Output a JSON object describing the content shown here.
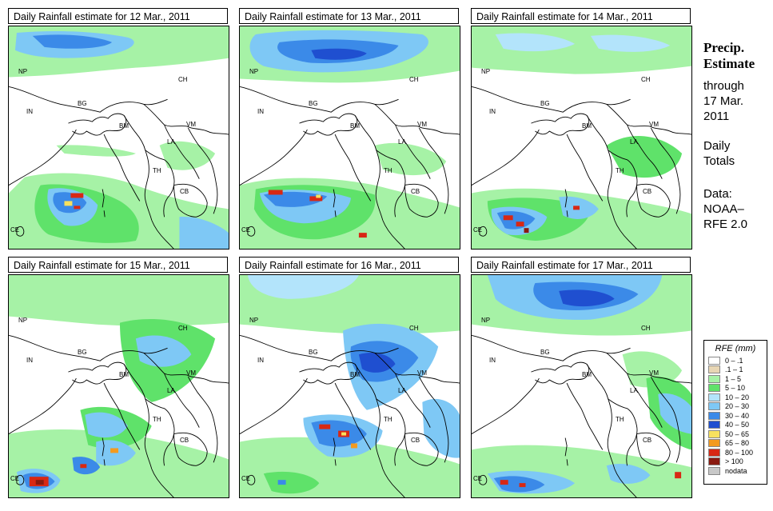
{
  "title_prefix": "Daily Rainfall estimate for",
  "panels": [
    {
      "title": "Daily Rainfall estimate for  12 Mar., 2011",
      "date": "12 Mar., 2011"
    },
    {
      "title": "Daily Rainfall estimate for  13 Mar., 2011",
      "date": "13 Mar., 2011"
    },
    {
      "title": "Daily Rainfall estimate for  14 Mar., 2011",
      "date": "14 Mar., 2011"
    },
    {
      "title": "Daily Rainfall estimate for  15 Mar., 2011",
      "date": "15 Mar., 2011"
    },
    {
      "title": "Daily Rainfall estimate for  16 Mar., 2011",
      "date": "16 Mar., 2011"
    },
    {
      "title": "Daily Rainfall estimate for  17 Mar., 2011",
      "date": "17 Mar., 2011"
    }
  ],
  "country_labels": {
    "NP": "NP",
    "CH": "CH",
    "IN": "IN",
    "BG": "BG",
    "BM": "BM",
    "VM": "VM",
    "LA": "LA",
    "TH": "TH",
    "CB": "CB",
    "CE": "CE"
  },
  "sidebar": {
    "title_line1": "Precip.",
    "title_line2": "Estimate",
    "through": "through",
    "date_line1": "17 Mar.",
    "date_line2": "2011",
    "daily": "Daily",
    "totals": "Totals",
    "data": "Data:",
    "source1": "NOAA–",
    "source2": "RFE 2.0"
  },
  "legend": {
    "title": "RFE (mm)",
    "entries": [
      {
        "label": "0 – .1",
        "color": "#ffffff"
      },
      {
        "label": ".1 – 1",
        "color": "#e8d6b4"
      },
      {
        "label": "1 – 5",
        "color": "#a6f2a6"
      },
      {
        "label": "5 – 10",
        "color": "#5fe26a"
      },
      {
        "label": "10 – 20",
        "color": "#b3e4fb"
      },
      {
        "label": "20 – 30",
        "color": "#7ec8f5"
      },
      {
        "label": "30 – 40",
        "color": "#3b8ae8"
      },
      {
        "label": "40 – 50",
        "color": "#1f4fd0"
      },
      {
        "label": "50 – 65",
        "color": "#f7e15e"
      },
      {
        "label": "65 – 80",
        "color": "#f39a1f"
      },
      {
        "label": "80 – 100",
        "color": "#d82814"
      },
      {
        "label": "> 100",
        "color": "#8a1a10"
      },
      {
        "label": "nodata",
        "color": "#c8c8c8"
      }
    ]
  }
}
